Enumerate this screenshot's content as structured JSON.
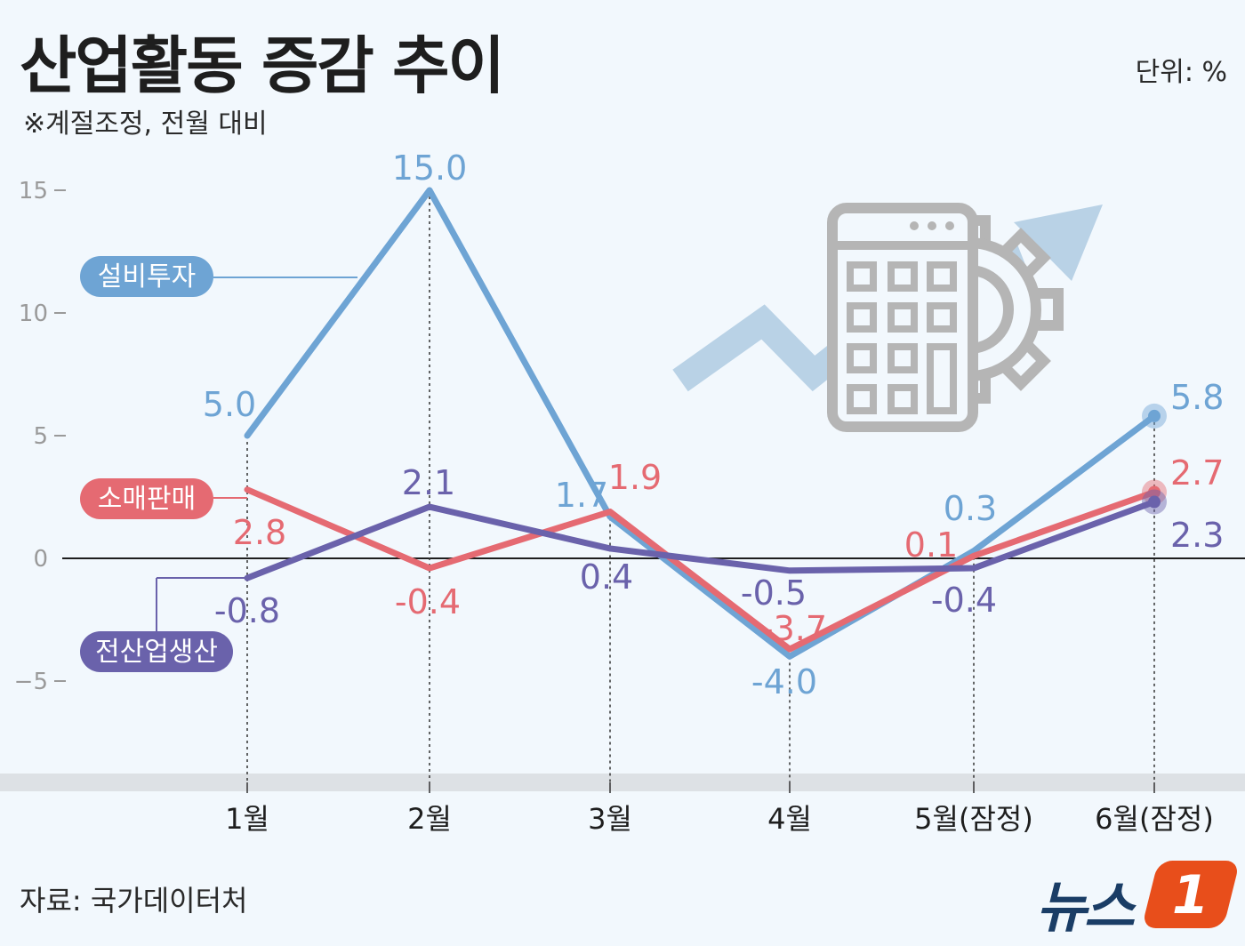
{
  "header": {
    "title": "산업활동 증감 추이",
    "subtitle": "※계절조정, 전월 대비",
    "unit": "단위: %"
  },
  "footer": {
    "source": "자료: 국가데이터처",
    "logo_text": "뉴스",
    "logo_badge": "1"
  },
  "colors": {
    "background": "#f2f8fd",
    "investment": "#6ea4d4",
    "retail": "#e56a72",
    "production": "#6a62ab",
    "axis": "#1e1e1e",
    "tick": "#9a9a9a",
    "illustration": "#b5b5b5",
    "arrow": "#b9d2e6"
  },
  "illustration": {
    "icons": [
      "calculator-icon",
      "gear-icon",
      "trend-arrow-icon"
    ]
  },
  "chart_data": {
    "type": "line",
    "categories": [
      "1월",
      "2월",
      "3월",
      "4월",
      "5월(잠정)",
      "6월(잠정)"
    ],
    "ylim": [
      -6,
      16
    ],
    "yticks": [
      -5,
      0,
      5,
      10,
      15
    ],
    "ytick_labels": [
      "−5",
      "0",
      "5",
      "10",
      "15"
    ],
    "grid": false,
    "legend_placement": "inline-left",
    "series": [
      {
        "name": "설비투자",
        "key": "investment",
        "values": [
          5.0,
          15.0,
          1.7,
          -4.0,
          0.3,
          5.8
        ],
        "labels": [
          "5.0",
          "15.0",
          "1.7",
          "-4.0",
          "0.3",
          "5.8"
        ]
      },
      {
        "name": "소매판매",
        "key": "retail",
        "values": [
          2.8,
          -0.4,
          1.9,
          -3.7,
          0.1,
          2.7
        ],
        "labels": [
          "2.8",
          "-0.4",
          "1.9",
          "-3.7",
          "0.1",
          "2.7"
        ]
      },
      {
        "name": "전산업생산",
        "key": "production",
        "values": [
          -0.8,
          2.1,
          0.4,
          -0.5,
          -0.4,
          2.3
        ],
        "labels": [
          "-0.8",
          "2.1",
          "0.4",
          "-0.5",
          "-0.4",
          "2.3"
        ]
      }
    ]
  }
}
